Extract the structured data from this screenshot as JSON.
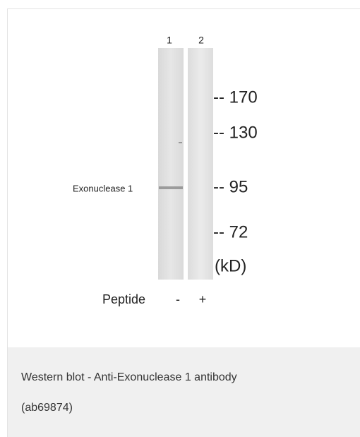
{
  "figure": {
    "lanes": [
      "1",
      "2"
    ],
    "markers": [
      "-- 170",
      "-- 130",
      "-- 95",
      "-- 72",
      "(kD)"
    ],
    "band_label": "Exonuclease 1",
    "peptide": {
      "label": "Peptide",
      "lanes": [
        "-",
        "+"
      ]
    }
  },
  "caption": {
    "lines": [
      "Western blot - Anti-Exonuclease 1 antibody",
      "(ab69874)"
    ]
  }
}
